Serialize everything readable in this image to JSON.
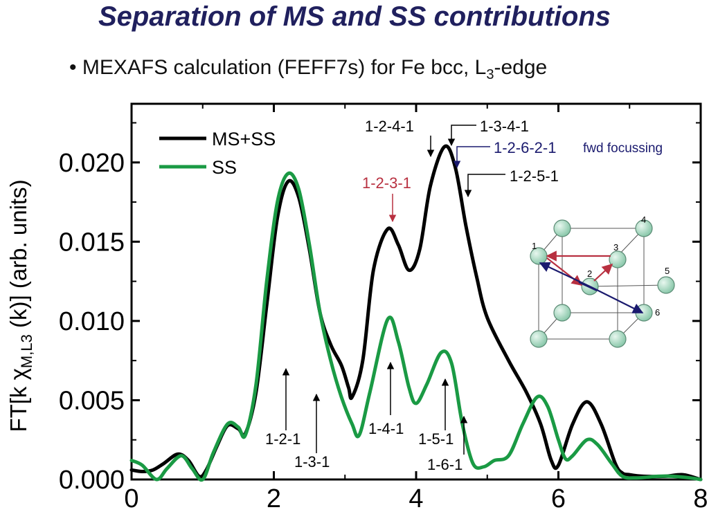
{
  "slide": {
    "title": "Separation of MS and SS contributions",
    "bullet_symbol": "•",
    "bullet_text_main": "MEXAFS calculation (FEFF7s) for Fe bcc, L",
    "bullet_text_sub": "3",
    "bullet_text_end": "-edge"
  },
  "colors": {
    "title": "#20205e",
    "ms_ss": "#000000",
    "ss": "#1a9a44",
    "highlight_red": "#b83040",
    "navy": "#1a1a6e",
    "atom_fill": "#a8dcc4"
  },
  "chart_data": {
    "type": "line",
    "ylabel": "FT[k χM,L3 (k)] (arb. units)",
    "xlabel": "",
    "xlim": [
      0,
      8
    ],
    "ylim": [
      0,
      0.0237
    ],
    "xticks": [
      "0",
      "2",
      "4",
      "6",
      "8"
    ],
    "yticks": [
      "0.000",
      "0.005",
      "0.010",
      "0.015",
      "0.020"
    ],
    "xtick_values": [
      0,
      2,
      4,
      6,
      8
    ],
    "ytick_values": [
      0,
      0.005,
      0.01,
      0.015,
      0.02
    ],
    "grid": false,
    "legend_position": "top-left",
    "series": [
      {
        "name": "MS+SS",
        "color": "#000000",
        "points": [
          [
            0,
            0.0006
          ],
          [
            0.15,
            0.0005
          ],
          [
            0.3,
            0.0006
          ],
          [
            0.45,
            0.001
          ],
          [
            0.65,
            0.0016
          ],
          [
            0.8,
            0.0012
          ],
          [
            0.95,
            0.0002
          ],
          [
            1.05,
            0.0006
          ],
          [
            1.2,
            0.0021
          ],
          [
            1.35,
            0.0034
          ],
          [
            1.5,
            0.0032
          ],
          [
            1.6,
            0.0029
          ],
          [
            1.75,
            0.0055
          ],
          [
            1.9,
            0.011
          ],
          [
            2.05,
            0.0165
          ],
          [
            2.2,
            0.0188
          ],
          [
            2.35,
            0.0178
          ],
          [
            2.5,
            0.0145
          ],
          [
            2.65,
            0.0105
          ],
          [
            2.8,
            0.0085
          ],
          [
            2.95,
            0.0072
          ],
          [
            3.05,
            0.0058
          ],
          [
            3.1,
            0.0052
          ],
          [
            3.25,
            0.0075
          ],
          [
            3.4,
            0.0132
          ],
          [
            3.6,
            0.0158
          ],
          [
            3.75,
            0.0148
          ],
          [
            3.9,
            0.0132
          ],
          [
            4.05,
            0.0145
          ],
          [
            4.2,
            0.0185
          ],
          [
            4.4,
            0.021
          ],
          [
            4.55,
            0.0197
          ],
          [
            4.7,
            0.016
          ],
          [
            4.85,
            0.0128
          ],
          [
            5.0,
            0.0102
          ],
          [
            5.3,
            0.0075
          ],
          [
            5.55,
            0.0055
          ],
          [
            5.75,
            0.0035
          ],
          [
            5.9,
            0.0012
          ],
          [
            6.0,
            0.0009
          ],
          [
            6.2,
            0.0035
          ],
          [
            6.4,
            0.0049
          ],
          [
            6.6,
            0.0035
          ],
          [
            6.8,
            0.001
          ],
          [
            6.9,
            0.0004
          ],
          [
            7.0,
            0.0003
          ],
          [
            7.2,
            0.0002
          ],
          [
            7.5,
            0.0002
          ],
          [
            7.75,
            0.0003
          ],
          [
            8.0,
            0.0
          ]
        ]
      },
      {
        "name": "SS",
        "color": "#1a9a44",
        "points": [
          [
            0,
            0.0012
          ],
          [
            0.15,
            0.0009
          ],
          [
            0.35,
            0.0
          ],
          [
            0.5,
            0.0007
          ],
          [
            0.7,
            0.0015
          ],
          [
            0.85,
            0.0007
          ],
          [
            1.0,
            0.0
          ],
          [
            1.15,
            0.0017
          ],
          [
            1.35,
            0.0035
          ],
          [
            1.5,
            0.0033
          ],
          [
            1.6,
            0.0028
          ],
          [
            1.75,
            0.006
          ],
          [
            1.9,
            0.0125
          ],
          [
            2.05,
            0.0175
          ],
          [
            2.2,
            0.0193
          ],
          [
            2.35,
            0.0183
          ],
          [
            2.5,
            0.0148
          ],
          [
            2.65,
            0.0105
          ],
          [
            2.8,
            0.0075
          ],
          [
            2.95,
            0.0052
          ],
          [
            3.1,
            0.0035
          ],
          [
            3.2,
            0.0028
          ],
          [
            3.35,
            0.0055
          ],
          [
            3.6,
            0.0101
          ],
          [
            3.75,
            0.0087
          ],
          [
            3.9,
            0.0058
          ],
          [
            4.0,
            0.0048
          ],
          [
            4.15,
            0.006
          ],
          [
            4.35,
            0.008
          ],
          [
            4.5,
            0.0073
          ],
          [
            4.65,
            0.0035
          ],
          [
            4.8,
            0.001
          ],
          [
            4.95,
            0.0008
          ],
          [
            5.1,
            0.0012
          ],
          [
            5.3,
            0.0015
          ],
          [
            5.5,
            0.0035
          ],
          [
            5.7,
            0.0052
          ],
          [
            5.85,
            0.0046
          ],
          [
            6.0,
            0.0025
          ],
          [
            6.1,
            0.0013
          ],
          [
            6.2,
            0.0015
          ],
          [
            6.4,
            0.0025
          ],
          [
            6.55,
            0.0022
          ],
          [
            6.75,
            0.001
          ],
          [
            6.9,
            0.0002
          ],
          [
            7.1,
            0.0001
          ],
          [
            7.4,
            0.0002
          ],
          [
            7.6,
            0.0002
          ],
          [
            7.85,
            0.0001
          ],
          [
            8.0,
            0.0
          ]
        ]
      }
    ],
    "annotations": [
      {
        "label": "1-2-4-1",
        "color": "#000000"
      },
      {
        "label": "1-3-4-1",
        "color": "#000000"
      },
      {
        "label": "1-2-6-2-1",
        "color": "#1a1a6e"
      },
      {
        "label": "fwd focussing",
        "color": "#1a1a6e"
      },
      {
        "label": "1-2-5-1",
        "color": "#000000"
      },
      {
        "label": "1-2-3-1",
        "color": "#b83040"
      },
      {
        "label": "1-2-1",
        "color": "#000000"
      },
      {
        "label": "1-3-1",
        "color": "#000000"
      },
      {
        "label": "1-4-1",
        "color": "#000000"
      },
      {
        "label": "1-5-1",
        "color": "#000000"
      },
      {
        "label": "1-6-1",
        "color": "#000000"
      }
    ],
    "inset_atom_labels": [
      "1",
      "2",
      "3",
      "4",
      "5",
      "6"
    ]
  }
}
